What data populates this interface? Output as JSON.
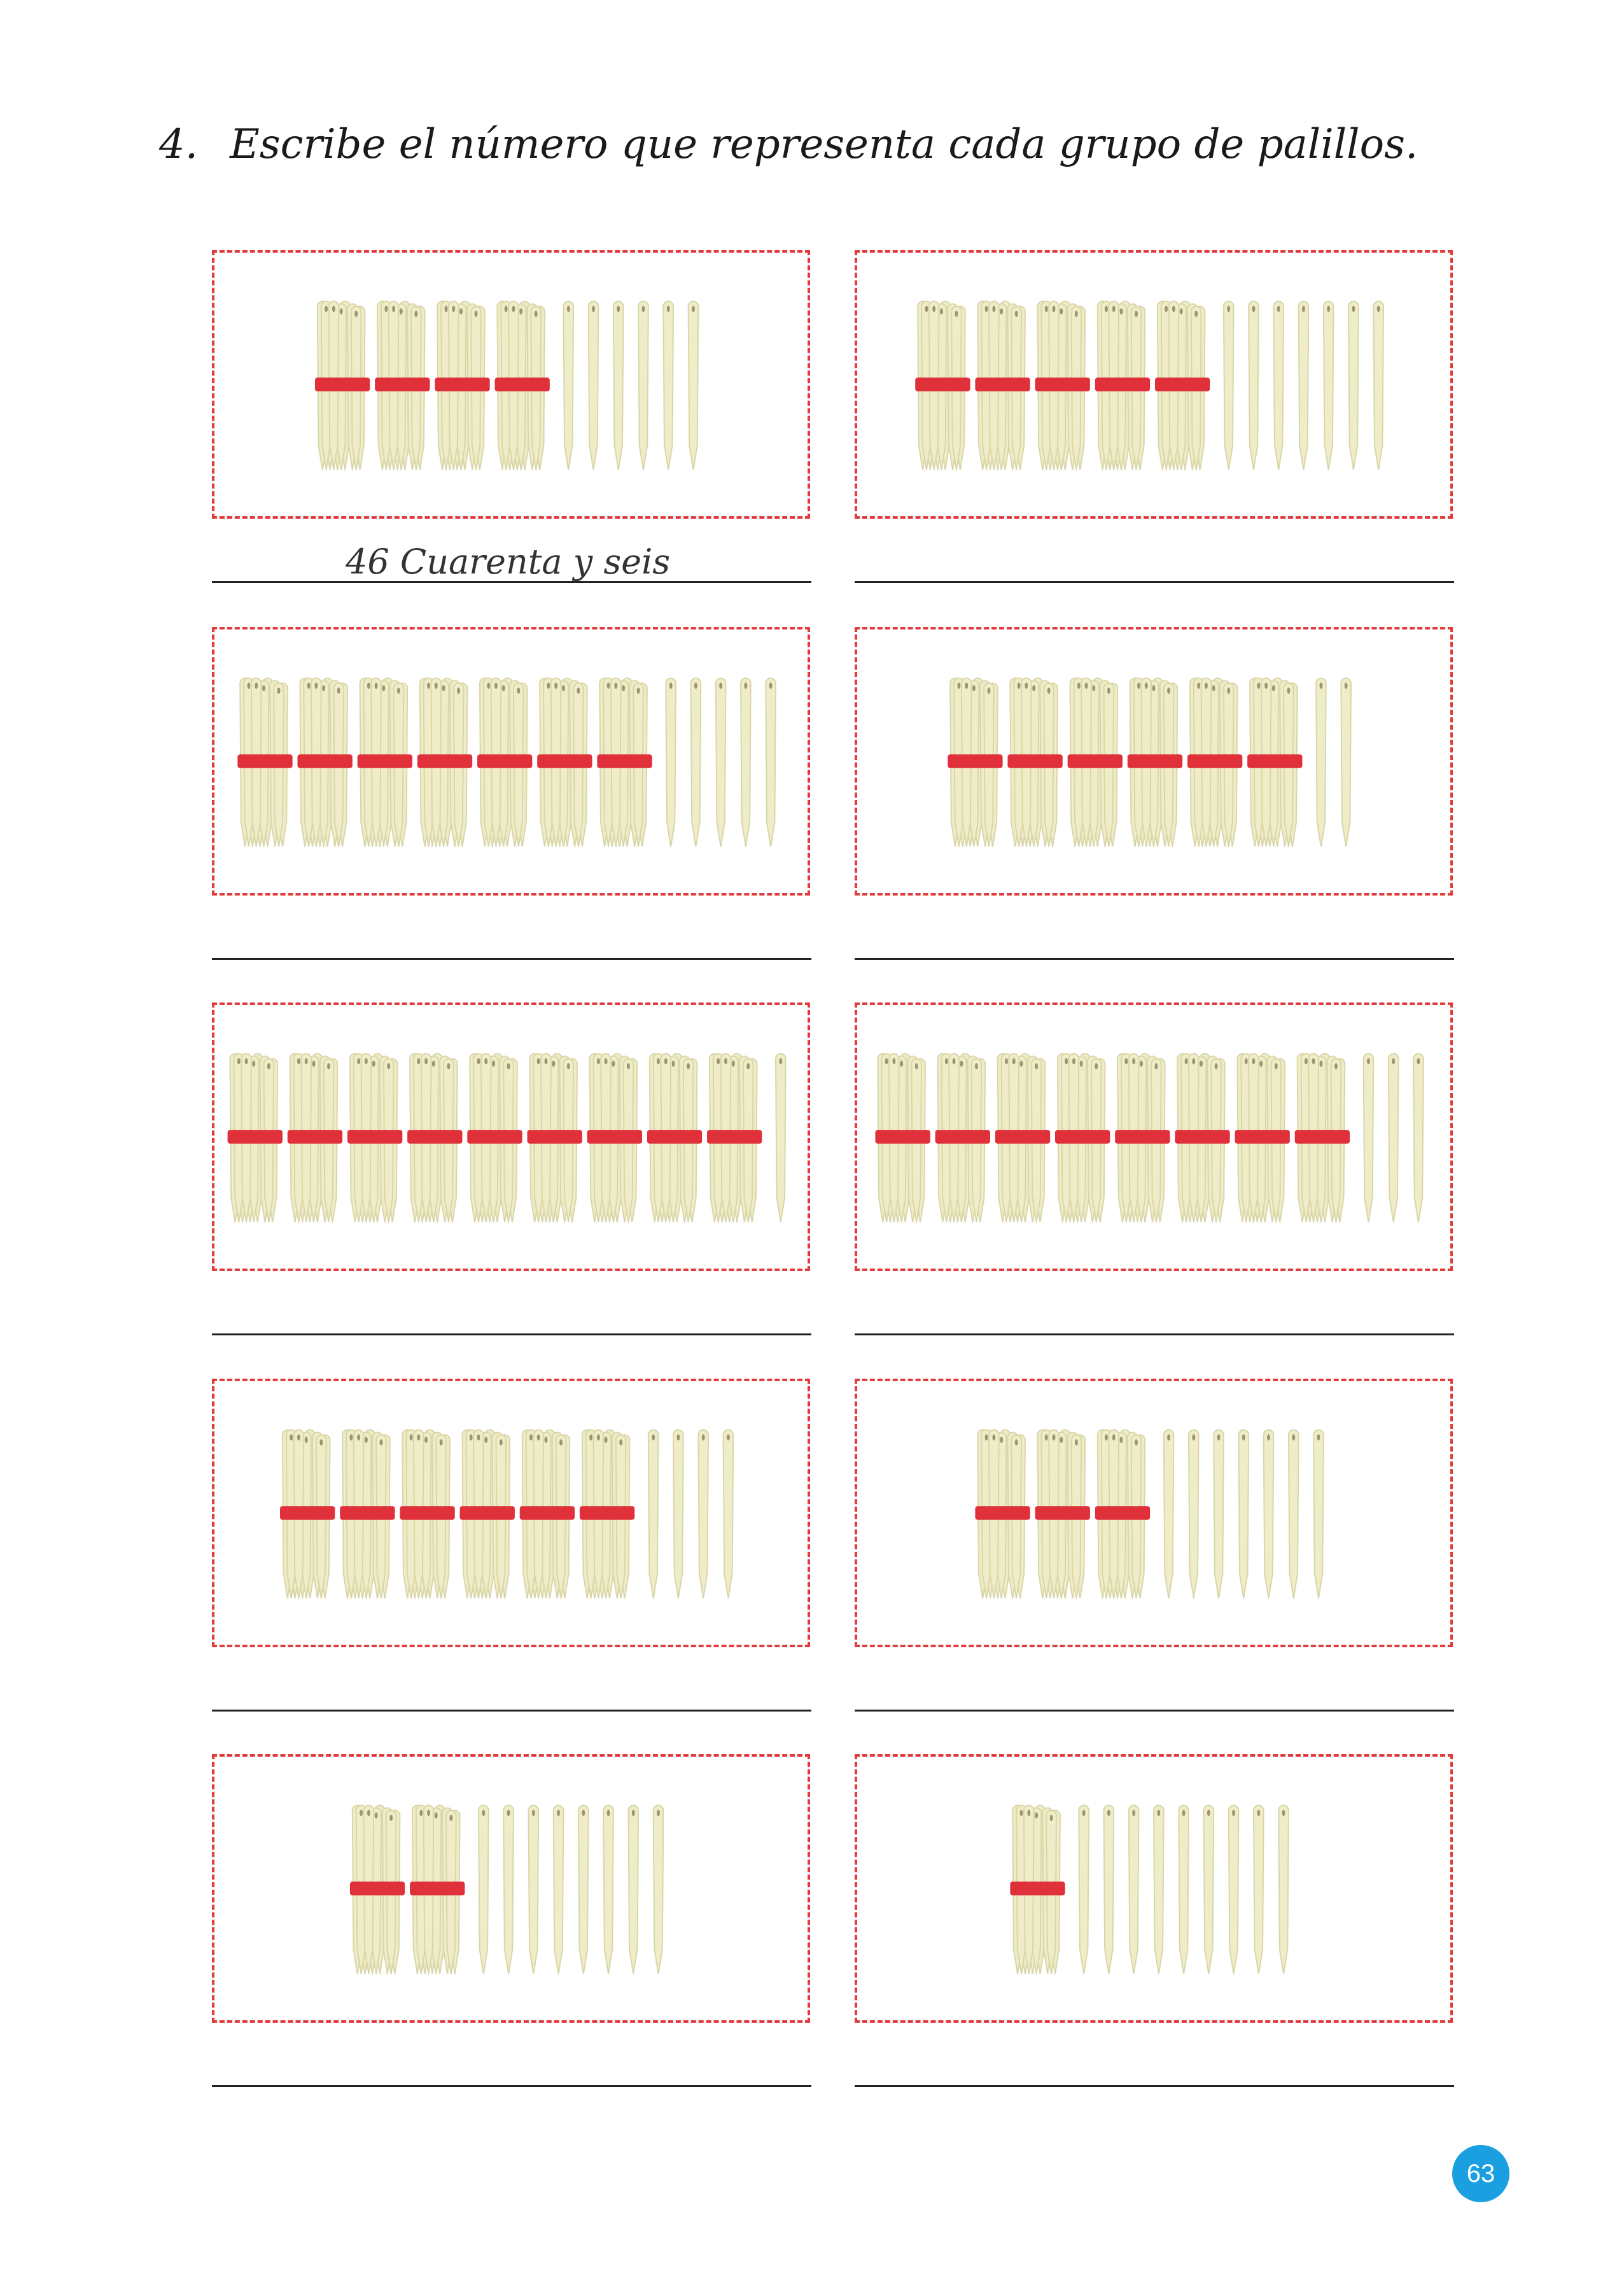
{
  "exercise": {
    "number": "4.",
    "instruction": "Escribe el número que representa cada grupo de palillos."
  },
  "colors": {
    "box_border": "#e23b3b",
    "stick": "#efecc8",
    "stick_shade": "#d9d6a8",
    "band": "#e0303a",
    "page_badge": "#1aa0e0"
  },
  "items": [
    {
      "tens": 4,
      "units": 6,
      "answer": "46 Cuarenta y seis"
    },
    {
      "tens": 5,
      "units": 7,
      "answer": ""
    },
    {
      "tens": 7,
      "units": 5,
      "answer": ""
    },
    {
      "tens": 6,
      "units": 2,
      "answer": ""
    },
    {
      "tens": 9,
      "units": 1,
      "answer": ""
    },
    {
      "tens": 8,
      "units": 3,
      "answer": ""
    },
    {
      "tens": 6,
      "units": 4,
      "answer": ""
    },
    {
      "tens": 3,
      "units": 7,
      "answer": ""
    },
    {
      "tens": 2,
      "units": 8,
      "answer": ""
    },
    {
      "tens": 1,
      "units": 9,
      "answer": ""
    }
  ],
  "page_number": "63"
}
